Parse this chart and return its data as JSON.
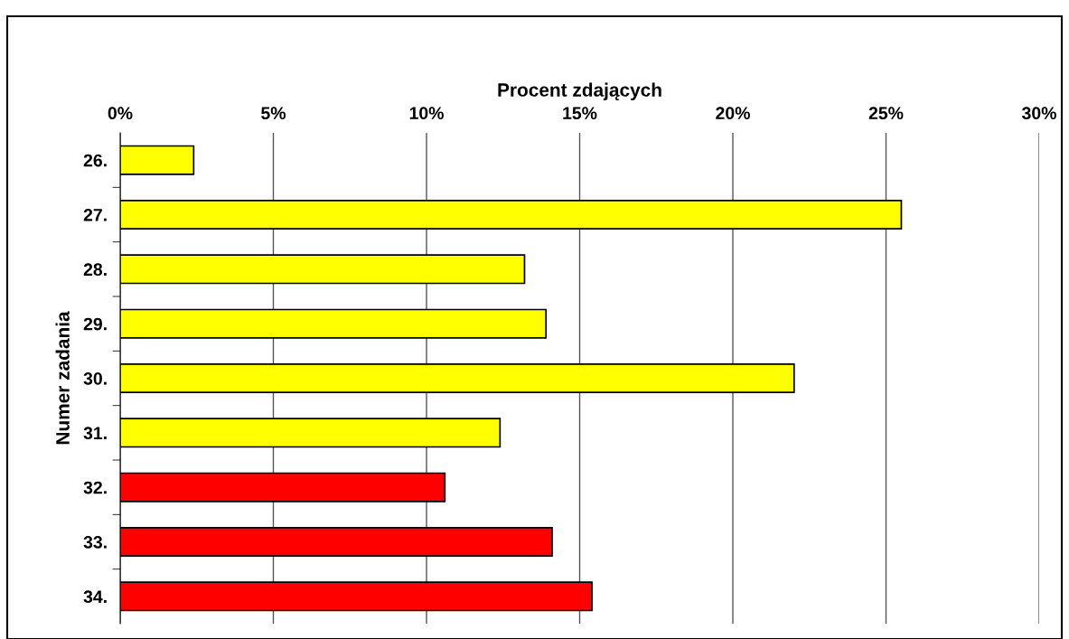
{
  "chart_data": {
    "type": "bar",
    "orientation": "horizontal",
    "xlabel": "Procent zdających",
    "ylabel": "Numer zadania",
    "categories": [
      "26.",
      "27.",
      "28.",
      "29.",
      "30.",
      "31.",
      "32.",
      "33.",
      "34."
    ],
    "values": [
      2.4,
      25.5,
      13.2,
      13.9,
      22.0,
      12.4,
      10.6,
      14.1,
      15.4
    ],
    "colors": [
      "#ffff00",
      "#ffff00",
      "#ffff00",
      "#ffff00",
      "#ffff00",
      "#ffff00",
      "#ff0000",
      "#ff0000",
      "#ff0000"
    ],
    "xlim": [
      0,
      30
    ],
    "xticks": [
      {
        "value": 0,
        "label": "0%"
      },
      {
        "value": 5,
        "label": "5%"
      },
      {
        "value": 10,
        "label": "10%"
      },
      {
        "value": 15,
        "label": "15%"
      },
      {
        "value": 20,
        "label": "20%"
      },
      {
        "value": 25,
        "label": "25%"
      },
      {
        "value": 30,
        "label": "30%"
      }
    ],
    "grid": "x"
  }
}
